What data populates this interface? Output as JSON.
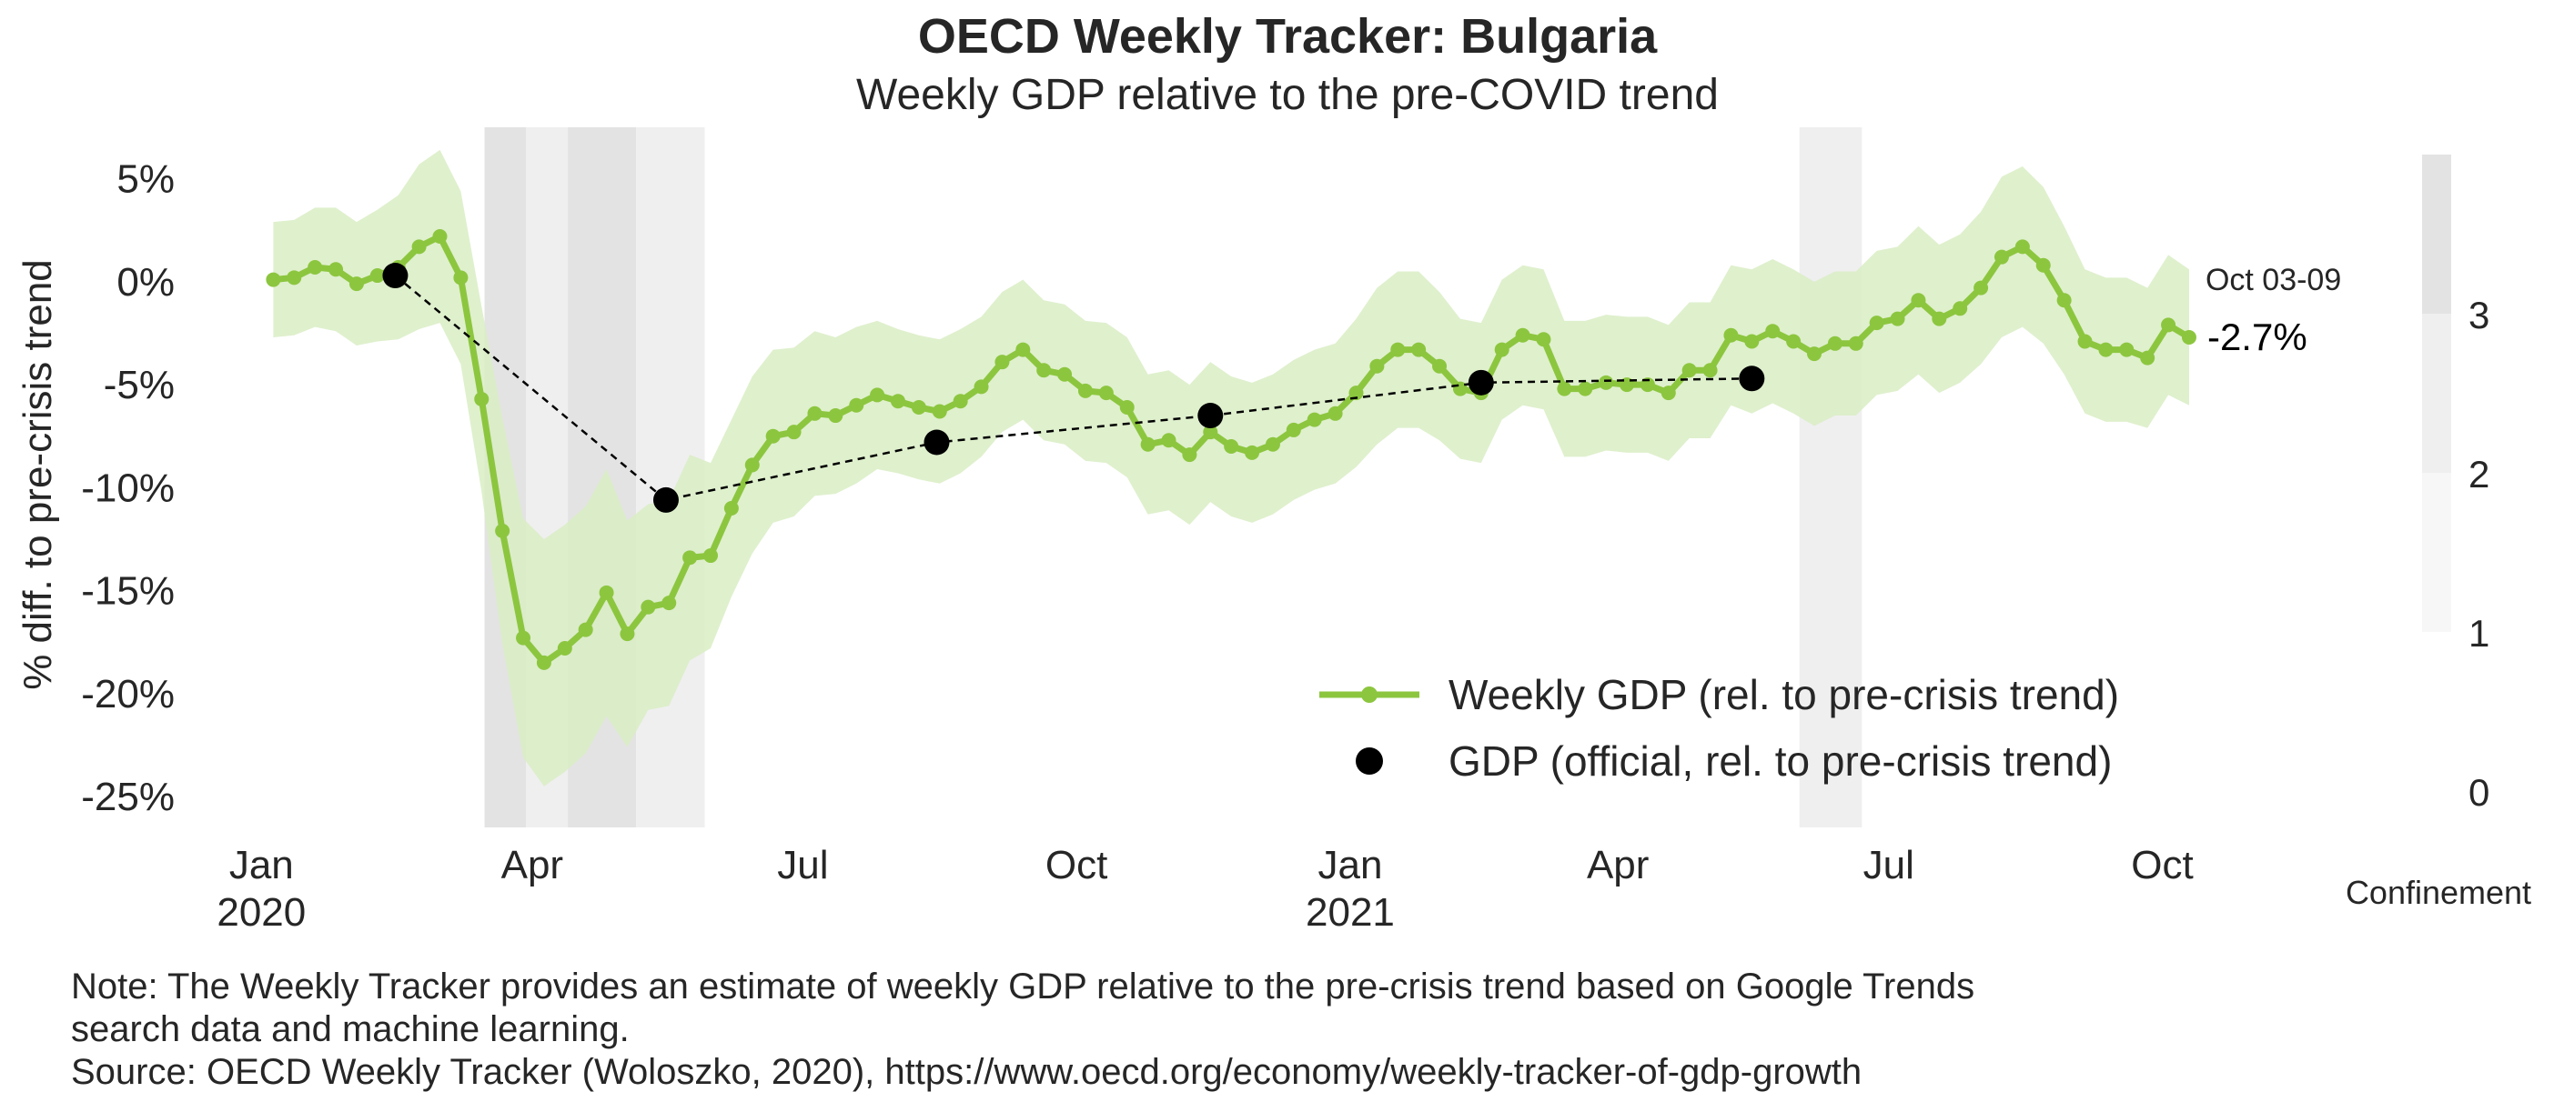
{
  "chart_data": {
    "type": "line",
    "title": "OECD Weekly Tracker: Bulgaria",
    "subtitle": "Weekly GDP relative to the pre-COVID trend",
    "ylabel": "% diff. to pre-crisis trend",
    "xlabel": "",
    "ylim": [
      -26.5,
      7.5
    ],
    "xlim": [
      "2019-12-16",
      "2021-10-25"
    ],
    "y_ticks": [
      {
        "value": 5,
        "label": "5%"
      },
      {
        "value": 0,
        "label": "0%"
      },
      {
        "value": -5,
        "label": "-5%"
      },
      {
        "value": -10,
        "label": "-10%"
      },
      {
        "value": -15,
        "label": "-15%"
      },
      {
        "value": -20,
        "label": "-20%"
      },
      {
        "value": -25,
        "label": "-25%"
      }
    ],
    "x_ticks": [
      {
        "date": "2020-01-01",
        "label": "Jan",
        "sublabel": "2020"
      },
      {
        "date": "2020-04-01",
        "label": "Apr",
        "sublabel": ""
      },
      {
        "date": "2020-07-01",
        "label": "Jul",
        "sublabel": ""
      },
      {
        "date": "2020-10-01",
        "label": "Oct",
        "sublabel": ""
      },
      {
        "date": "2021-01-01",
        "label": "Jan",
        "sublabel": "2021"
      },
      {
        "date": "2021-04-01",
        "label": "Apr",
        "sublabel": ""
      },
      {
        "date": "2021-07-01",
        "label": "Jul",
        "sublabel": ""
      },
      {
        "date": "2021-10-01",
        "label": "Oct",
        "sublabel": ""
      }
    ],
    "grid": false,
    "legend_placement": "lower-right",
    "confinement": {
      "label": "Confinement",
      "ticks": [
        "0",
        "1",
        "2",
        "3"
      ],
      "bands": [
        {
          "start": "2020-03-16",
          "end": "2020-03-30",
          "level": 3
        },
        {
          "start": "2020-03-30",
          "end": "2020-04-13",
          "level": 2
        },
        {
          "start": "2020-04-13",
          "end": "2020-05-06",
          "level": 3
        },
        {
          "start": "2020-05-06",
          "end": "2020-05-29",
          "level": 2
        },
        {
          "start": "2021-06-01",
          "end": "2021-06-22",
          "level": 2
        }
      ]
    },
    "series": [
      {
        "name": "Weekly GDP (rel. to pre-crisis trend)",
        "color": "#8cc63f",
        "marker": "circle",
        "ci_color": "#d9edc4",
        "dates": [
          "2020-01-05",
          "2020-01-12",
          "2020-01-19",
          "2020-01-26",
          "2020-02-02",
          "2020-02-09",
          "2020-02-16",
          "2020-02-23",
          "2020-03-01",
          "2020-03-08",
          "2020-03-15",
          "2020-03-22",
          "2020-03-29",
          "2020-04-05",
          "2020-04-12",
          "2020-04-19",
          "2020-04-26",
          "2020-05-03",
          "2020-05-10",
          "2020-05-17",
          "2020-05-24",
          "2020-05-31",
          "2020-06-07",
          "2020-06-14",
          "2020-06-21",
          "2020-06-28",
          "2020-07-05",
          "2020-07-12",
          "2020-07-19",
          "2020-07-26",
          "2020-08-02",
          "2020-08-09",
          "2020-08-16",
          "2020-08-23",
          "2020-08-30",
          "2020-09-06",
          "2020-09-13",
          "2020-09-20",
          "2020-09-27",
          "2020-10-04",
          "2020-10-11",
          "2020-10-18",
          "2020-10-25",
          "2020-11-01",
          "2020-11-08",
          "2020-11-15",
          "2020-11-22",
          "2020-11-29",
          "2020-12-06",
          "2020-12-13",
          "2020-12-20",
          "2020-12-27",
          "2021-01-03",
          "2021-01-10",
          "2021-01-17",
          "2021-01-24",
          "2021-01-31",
          "2021-02-07",
          "2021-02-14",
          "2021-02-21",
          "2021-02-28",
          "2021-03-07",
          "2021-03-14",
          "2021-03-21",
          "2021-03-28",
          "2021-04-04",
          "2021-04-11",
          "2021-04-18",
          "2021-04-25",
          "2021-05-02",
          "2021-05-09",
          "2021-05-16",
          "2021-05-23",
          "2021-05-30",
          "2021-06-06",
          "2021-06-13",
          "2021-06-20",
          "2021-06-27",
          "2021-07-04",
          "2021-07-11",
          "2021-07-18",
          "2021-07-25",
          "2021-08-01",
          "2021-08-08",
          "2021-08-15",
          "2021-08-22",
          "2021-08-29",
          "2021-09-05",
          "2021-09-12",
          "2021-09-19",
          "2021-09-26",
          "2021-10-03",
          "2021-10-10"
        ],
        "values": [
          0.1,
          0.2,
          0.7,
          0.6,
          -0.1,
          0.3,
          0.7,
          1.7,
          2.2,
          0.2,
          -5.7,
          -12.1,
          -17.3,
          -18.5,
          -17.8,
          -16.9,
          -15.1,
          -17.1,
          -15.8,
          -15.6,
          -13.4,
          -13.3,
          -11.0,
          -8.9,
          -7.5,
          -7.3,
          -6.4,
          -6.5,
          -6.0,
          -5.5,
          -5.8,
          -6.1,
          -6.3,
          -5.8,
          -5.1,
          -3.9,
          -3.3,
          -4.3,
          -4.5,
          -5.3,
          -5.4,
          -6.1,
          -7.9,
          -7.7,
          -8.4,
          -7.3,
          -8.0,
          -8.3,
          -7.9,
          -7.2,
          -6.7,
          -6.4,
          -5.4,
          -4.1,
          -3.3,
          -3.3,
          -4.1,
          -5.2,
          -5.4,
          -3.3,
          -2.6,
          -2.8,
          -5.2,
          -5.2,
          -4.9,
          -5.0,
          -5.0,
          -5.4,
          -4.3,
          -4.3,
          -2.6,
          -2.9,
          -2.4,
          -2.9,
          -3.5,
          -3.0,
          -3.0,
          -2.0,
          -1.8,
          -0.9,
          -1.8,
          -1.3,
          -0.3,
          1.2,
          1.7,
          0.8,
          -0.9,
          -2.9,
          -3.3,
          -3.3,
          -3.7,
          -2.1,
          -2.7
        ],
        "ci_half_width": [
          2.8,
          2.8,
          2.9,
          3.0,
          3.0,
          3.2,
          3.5,
          4.0,
          4.2,
          4.2,
          4.5,
          5.5,
          5.8,
          6.0,
          6.0,
          6.0,
          6.0,
          5.5,
          5.0,
          5.0,
          5.0,
          4.5,
          4.3,
          4.3,
          4.2,
          4.1,
          4.0,
          3.8,
          3.8,
          3.6,
          3.5,
          3.5,
          3.5,
          3.5,
          3.4,
          3.4,
          3.4,
          3.4,
          3.4,
          3.4,
          3.4,
          3.4,
          3.4,
          3.4,
          3.4,
          3.4,
          3.4,
          3.4,
          3.4,
          3.4,
          3.4,
          3.4,
          3.6,
          3.8,
          3.8,
          3.8,
          3.6,
          3.4,
          3.4,
          3.4,
          3.4,
          3.4,
          3.3,
          3.3,
          3.3,
          3.3,
          3.3,
          3.3,
          3.3,
          3.3,
          3.4,
          3.5,
          3.5,
          3.5,
          3.5,
          3.5,
          3.5,
          3.5,
          3.5,
          3.6,
          3.6,
          3.6,
          3.7,
          3.9,
          3.9,
          3.8,
          3.6,
          3.5,
          3.5,
          3.5,
          3.4,
          3.4,
          3.3
        ]
      },
      {
        "name": "GDP (official, rel. to pre-crisis trend)",
        "color": "#000000",
        "marker": "circle",
        "line_style": "dashed",
        "dates": [
          "2020-02-15",
          "2020-05-16",
          "2020-08-15",
          "2020-11-15",
          "2021-02-14",
          "2021-05-16"
        ],
        "values": [
          0.3,
          -10.6,
          -7.8,
          -6.5,
          -4.9,
          -4.7
        ]
      }
    ],
    "annotations": [
      {
        "type": "last-date",
        "text": "Oct 03-09"
      },
      {
        "type": "last-value",
        "text": "-2.7%"
      }
    ]
  },
  "footer": {
    "note_line1": "Note: The Weekly Tracker provides an estimate of weekly GDP relative to the pre-crisis trend based on Google Trends",
    "note_line2": "search data and machine learning.",
    "source": "Source: OECD Weekly Tracker (Woloszko, 2020), https://www.oecd.org/economy/weekly-tracker-of-gdp-growth"
  }
}
